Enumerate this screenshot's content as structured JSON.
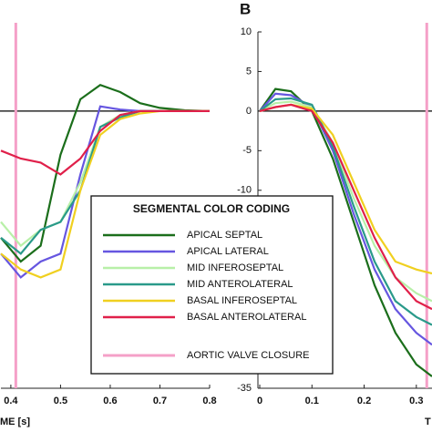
{
  "chart_data": [
    {
      "type": "line",
      "xlabel": "ME [s]",
      "x": [
        0.38,
        0.42,
        0.46,
        0.5,
        0.54,
        0.58,
        0.62,
        0.66,
        0.7,
        0.75,
        0.8
      ],
      "xlim": [
        0.38,
        0.8
      ],
      "xticks": [
        0.4,
        0.5,
        0.6,
        0.7,
        0.8
      ],
      "ylim": [
        -35,
        10
      ],
      "series": [
        {
          "color": "#1b6e1b",
          "values": [
            -16,
            -19,
            -17,
            -5.5,
            1.5,
            3.3,
            2.4,
            1,
            0.4,
            0.1,
            0
          ]
        },
        {
          "color": "#6656e0",
          "values": [
            -18,
            -21,
            -19,
            -18,
            -8,
            0.6,
            0.2,
            0,
            0,
            0,
            0
          ]
        },
        {
          "color": "#b8f0a8",
          "values": [
            -14,
            -17,
            -15,
            -14,
            -9,
            -2,
            -0.5,
            0,
            0,
            0,
            0
          ]
        },
        {
          "color": "#2a9a8a",
          "values": [
            -16,
            -18,
            -15,
            -14,
            -10,
            -2,
            -0.8,
            0,
            0,
            0,
            0
          ]
        },
        {
          "color": "#f0d020",
          "values": [
            -18,
            -20,
            -21,
            -20,
            -10,
            -3,
            -1,
            -0.3,
            0,
            0,
            0
          ]
        },
        {
          "color": "#e0204a",
          "values": [
            -5,
            -6,
            -6.5,
            -8,
            -6,
            -2.5,
            -0.5,
            0,
            0,
            0,
            0
          ]
        }
      ],
      "reference_line": {
        "color": "#f5a0c8",
        "x": 0.41
      }
    },
    {
      "type": "line",
      "panel_label": "B",
      "xlabel": "T",
      "legend_title": "SEGMENTAL COLOR CODING",
      "x": [
        0,
        0.03,
        0.06,
        0.1,
        0.14,
        0.18,
        0.22,
        0.26,
        0.3,
        0.33
      ],
      "xlim": [
        0,
        0.33
      ],
      "xticks": [
        0,
        0.1,
        0.2,
        0.3
      ],
      "ylim": [
        -35,
        10
      ],
      "yticks": [
        10,
        5,
        0,
        -5,
        -10,
        -15,
        -20,
        -25,
        -30,
        -35
      ],
      "series": [
        {
          "name": "APICAL SEPTAL",
          "color": "#1b6e1b",
          "values": [
            0,
            2.8,
            2.5,
            0,
            -6,
            -14,
            -22,
            -28,
            -32,
            -33.5
          ]
        },
        {
          "name": "APICAL LATERAL",
          "color": "#6656e0",
          "values": [
            0,
            2.2,
            2,
            0.5,
            -5,
            -13,
            -20,
            -25,
            -28,
            -29.5
          ]
        },
        {
          "name": "MID INFEROSEPTAL",
          "color": "#b8f0a8",
          "values": [
            0,
            1,
            1.2,
            0.5,
            -4,
            -11,
            -17,
            -21,
            -23,
            -24
          ]
        },
        {
          "name": "MID ANTEROLATERAL",
          "color": "#2a9a8a",
          "values": [
            0,
            1.5,
            1.6,
            0.8,
            -4.5,
            -12,
            -19,
            -24,
            -26,
            -27
          ]
        },
        {
          "name": "BASAL INFEROSEPTAL",
          "color": "#f0d020",
          "values": [
            0,
            0.5,
            0.8,
            0.3,
            -3,
            -9,
            -15,
            -19,
            -20,
            -20.5
          ]
        },
        {
          "name": "BASAL ANTEROLATERAL",
          "color": "#e0204a",
          "values": [
            0,
            0.5,
            0.8,
            0,
            -4,
            -10,
            -16,
            -21,
            -24,
            -25
          ]
        }
      ],
      "reference_line": {
        "name": "AORTIC VALVE CLOSURE",
        "color": "#f5a0c8",
        "x": 0.32
      }
    }
  ]
}
